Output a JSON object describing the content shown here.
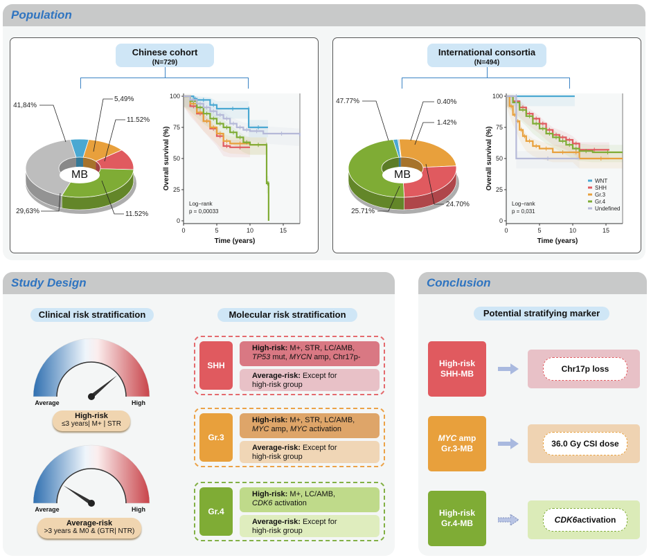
{
  "sections": {
    "population": "Population",
    "study_design": "Study Design",
    "conclusion": "Conclusion"
  },
  "colors": {
    "WNT": "#4aa8d2",
    "SHH": "#e05a5f",
    "Gr3": "#e8a03c",
    "Gr4": "#7fac35",
    "Undefined": "#bdbdbd",
    "Undefined_km": "#b5b9d8",
    "section_title": "#2f74c0"
  },
  "population": {
    "cohorts": [
      {
        "title": "Chinese cohort",
        "n": "(N=729)",
        "donut_center": "MB",
        "donut_labels": [
          "41,84%",
          "5,49%",
          "11.52%",
          "11.52%",
          "29,63%"
        ],
        "km_logrank": "Log−rank",
        "km_p": "p = 0,00033"
      },
      {
        "title": "International consortia",
        "n": "(N=494)",
        "donut_center": "MB",
        "donut_labels": [
          "47.77%",
          "0.40%",
          "1.42%",
          "24.70%",
          "25.71%"
        ],
        "km_logrank": "Log−rank",
        "km_p": "p = 0,031"
      }
    ]
  },
  "chart_data": [
    {
      "type": "pie",
      "title": "Chinese cohort MB subgroups",
      "center_label": "MB",
      "slices": [
        {
          "name": "WNT",
          "value": 5.49
        },
        {
          "name": "Gr.3",
          "value": 11.52
        },
        {
          "name": "SHH",
          "value": 11.52
        },
        {
          "name": "Gr.4",
          "value": 29.63
        },
        {
          "name": "Undefined",
          "value": 41.84
        }
      ]
    },
    {
      "type": "line",
      "title": "Chinese cohort overall survival",
      "xlabel": "Time (years)",
      "ylabel": "Overall survival (%)",
      "xlim": [
        0,
        17.5
      ],
      "ylim": [
        0,
        100
      ],
      "xticks": [
        0,
        5,
        10,
        15
      ],
      "yticks": [
        0,
        25,
        50,
        75,
        100
      ],
      "annotation": [
        "Log−rank",
        "p = 0,00033"
      ],
      "series": [
        {
          "name": "WNT",
          "x": [
            0,
            1.5,
            2,
            4,
            5,
            9.8,
            9.8,
            12.7
          ],
          "y": [
            100,
            98,
            97,
            93,
            90,
            90,
            75,
            75
          ]
        },
        {
          "name": "SHH",
          "x": [
            0,
            1,
            2,
            3,
            4,
            5,
            6,
            7,
            10
          ],
          "y": [
            100,
            92,
            86,
            80,
            74,
            68,
            60,
            59,
            59
          ]
        },
        {
          "name": "Gr.3",
          "x": [
            0,
            1,
            2,
            3,
            4,
            5,
            6,
            7,
            10,
            12.5
          ],
          "y": [
            100,
            94,
            87,
            80,
            75,
            70,
            64,
            62,
            61,
            61
          ]
        },
        {
          "name": "Gr.4",
          "x": [
            0,
            1,
            2,
            3,
            4,
            5,
            6,
            7,
            8,
            9,
            10,
            12.5,
            12.5,
            12.8,
            12.8
          ],
          "y": [
            100,
            96,
            91,
            86,
            82,
            78,
            75,
            71,
            67,
            63,
            61,
            61,
            30,
            30,
            0
          ]
        },
        {
          "name": "Undefined",
          "x": [
            0,
            1,
            2,
            3,
            4,
            5,
            6,
            7,
            8,
            9,
            10,
            12,
            17.5
          ],
          "y": [
            100,
            97,
            94,
            91,
            88,
            85,
            82,
            78,
            75,
            73,
            72,
            70,
            68
          ]
        }
      ]
    },
    {
      "type": "pie",
      "title": "International consortia MB subgroups",
      "center_label": "MB",
      "slices": [
        {
          "name": "WNT",
          "value": 1.42
        },
        {
          "name": "Undefined",
          "value": 0.4
        },
        {
          "name": "Gr.3",
          "value": 24.7
        },
        {
          "name": "SHH",
          "value": 25.71
        },
        {
          "name": "Gr.4",
          "value": 47.77
        }
      ]
    },
    {
      "type": "line",
      "title": "International consortia overall survival",
      "xlabel": "Time (years)",
      "ylabel": "Overall survival (%)",
      "xlim": [
        0,
        17.5
      ],
      "ylim": [
        0,
        100
      ],
      "xticks": [
        0,
        5,
        10,
        15
      ],
      "yticks": [
        0,
        25,
        50,
        75,
        100
      ],
      "legend": [
        "WNT",
        "SHH",
        "Gr.3",
        "Gr.4",
        "Undefined"
      ],
      "legend_position": "bottom-right",
      "annotation": [
        "Log−rank",
        "p = 0,031"
      ],
      "series": [
        {
          "name": "WNT",
          "x": [
            0,
            10.3
          ],
          "y": [
            100,
            100
          ]
        },
        {
          "name": "SHH",
          "x": [
            0,
            1,
            2,
            3,
            4,
            5,
            6,
            7,
            8,
            9,
            10,
            11,
            15.5
          ],
          "y": [
            100,
            96,
            91,
            86,
            82,
            78,
            73,
            69,
            67,
            65,
            62,
            57,
            57
          ]
        },
        {
          "name": "Gr.3",
          "x": [
            0,
            0.5,
            1,
            1.5,
            2,
            2.5,
            3,
            4,
            5,
            7,
            10,
            11,
            17.5
          ],
          "y": [
            100,
            92,
            85,
            80,
            73,
            68,
            64,
            60,
            58,
            55,
            55,
            50,
            50
          ]
        },
        {
          "name": "Gr.4",
          "x": [
            0,
            1,
            2,
            3,
            4,
            5,
            6,
            7,
            8,
            9,
            10,
            11,
            13,
            17.5
          ],
          "y": [
            100,
            95,
            89,
            84,
            78,
            74,
            70,
            67,
            64,
            61,
            58,
            56,
            55,
            55
          ]
        },
        {
          "name": "Undefined",
          "x": [
            0,
            1.5,
            1.5,
            11
          ],
          "y": [
            100,
            100,
            50,
            50
          ]
        }
      ]
    }
  ],
  "km_axis": {
    "ylabel": "Overall survival (%)",
    "xlabel": "Time (years)",
    "yticks": [
      "0",
      "25",
      "50",
      "75",
      "100"
    ],
    "xticks": [
      "0",
      "5",
      "10",
      "15"
    ]
  },
  "legend": [
    "WNT",
    "SHH",
    "Gr.3",
    "Gr.4",
    "Undefined"
  ],
  "study": {
    "clinical_title": "Clinical risk stratification",
    "molecular_title": "Molecular risk stratification",
    "gauge_low": "Average",
    "gauge_high": "High",
    "gauges": [
      {
        "risk_level": 0.78,
        "title": "High-risk",
        "criteria": "≤3 years| M+ | STR"
      },
      {
        "risk_level": 0.18,
        "title": "Average-risk",
        "criteria": ">3 years & M0 & (GTR| NTR)"
      }
    ],
    "molecular": [
      {
        "group": "SHH",
        "high_label": "High-risk:",
        "high_line1": "M+, STR, LC/AMB,",
        "high_line2_parts": [
          {
            "text": "TP53",
            "italic": true
          },
          {
            "text": " mut, ",
            "italic": false
          },
          {
            "text": "MYCN",
            "italic": true
          },
          {
            "text": " amp, Chr17p-",
            "italic": false
          }
        ],
        "avg_label": "Average-risk:",
        "avg_line1": "Except for",
        "avg_line2": "high-risk group"
      },
      {
        "group": "Gr.3",
        "high_label": "High-risk:",
        "high_line1": "M+, STR, LC/AMB,",
        "high_line2_parts": [
          {
            "text": "MYC",
            "italic": true
          },
          {
            "text": " amp, ",
            "italic": false
          },
          {
            "text": "MYC",
            "italic": true
          },
          {
            "text": " activation",
            "italic": false
          }
        ],
        "avg_label": "Average-risk:",
        "avg_line1": "Except for",
        "avg_line2": "high-risk group"
      },
      {
        "group": "Gr.4",
        "high_label": "High-risk:",
        "high_line1": "M+, LC/AMB,",
        "high_line2_parts": [
          {
            "text": "CDK6",
            "italic": true
          },
          {
            "text": " activation",
            "italic": false
          }
        ],
        "avg_label": "Average-risk:",
        "avg_line1": "Except for",
        "avg_line2": "high-risk group"
      }
    ]
  },
  "conclusion": {
    "title": "Potential stratifying marker",
    "rows": [
      {
        "left_line1": "High-risk",
        "left_line1_italic_prefix": "",
        "left_line2": "SHH-MB",
        "marker": "Chr17p loss",
        "marker_italic_prefix": "",
        "arrow": "solid-arrow-icon"
      },
      {
        "left_line1": " amp",
        "left_line1_italic_prefix": "MYC",
        "left_line2": "Gr.3-MB",
        "marker": "36.0 Gy CSI dose",
        "marker_italic_prefix": "",
        "arrow": "solid-arrow-icon"
      },
      {
        "left_line1": "High-risk",
        "left_line1_italic_prefix": "",
        "left_line2": "Gr.4-MB",
        "marker": " activation",
        "marker_italic_prefix": "CDK6",
        "arrow": "dashed-arrow-icon"
      }
    ]
  }
}
